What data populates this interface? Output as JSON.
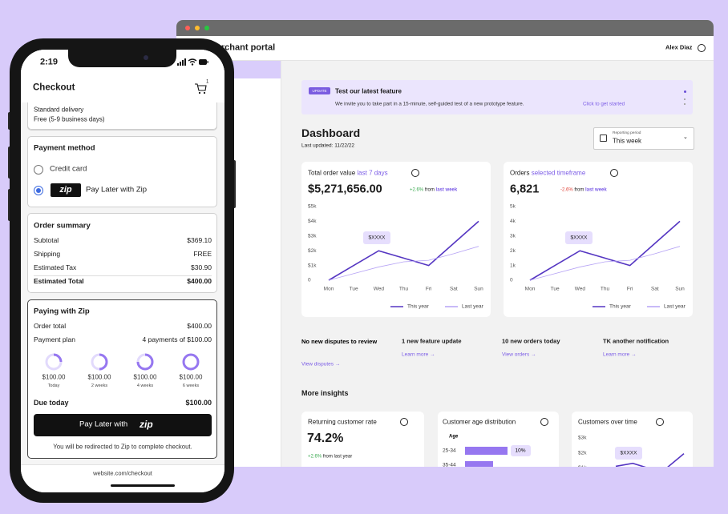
{
  "phone": {
    "status_time": "2:19",
    "header": {
      "title": "Checkout",
      "cart_count": "1"
    },
    "delivery": {
      "name": "Standard delivery",
      "detail": "Free (5-9 business days)"
    },
    "payment_method": {
      "title": "Payment method",
      "options": [
        {
          "label": "Credit card"
        },
        {
          "logo": "zip",
          "label": "Pay Later with Zip"
        }
      ]
    },
    "order_summary": {
      "title": "Order summary",
      "rows": [
        [
          "Subtotal",
          "$369.10"
        ],
        [
          "Shipping",
          "FREE"
        ],
        [
          "Estimated Tax",
          "$30.90"
        ],
        [
          "Estimated Total",
          "$400.00"
        ]
      ]
    },
    "zip": {
      "title": "Paying with Zip",
      "rows": [
        [
          "Order total",
          "$400.00"
        ],
        [
          "Payment plan",
          "4 payments of $100.00"
        ]
      ],
      "installments": [
        {
          "amount": "$100.00",
          "when": "Today"
        },
        {
          "amount": "$100.00",
          "when": "2 weeks"
        },
        {
          "amount": "$100.00",
          "when": "4 weeks"
        },
        {
          "amount": "$100.00",
          "when": "6 weeks"
        }
      ],
      "due": [
        "Due today",
        "$100.00"
      ],
      "button": {
        "label": "Pay Later with",
        "logo": "zip"
      },
      "note": "You will be redirected to Zip to complete checkout."
    },
    "url": "website.com/checkout"
  },
  "portal": {
    "brand": "merchant portal",
    "user": "Alex Diaz",
    "banner": {
      "badge": "UPDATE",
      "title": "Test our latest feature",
      "text": "We invite you to take part in a 15-minute, self-guided test of a new prototype feature.",
      "link": "Click to get started"
    },
    "dashboard": {
      "title": "Dashboard",
      "updated": "Last updated: 11/22/22",
      "period": {
        "label": "Reporting period",
        "value": "This week"
      }
    },
    "kpis": [
      {
        "title": "Total order value",
        "filter": "last 7 days",
        "value": "$5,271,656.00",
        "change": "+2.6%",
        "from": "from",
        "period": "last week"
      },
      {
        "title": "Orders",
        "filter": "selected timeframe",
        "value": "6,821",
        "change": "-2.6%",
        "from": "from",
        "period": "last week"
      }
    ],
    "notifications": [
      {
        "title": "No new disputes to review",
        "link": "View disputes →"
      },
      {
        "title": "1 new feature update",
        "link": "Learn more →"
      },
      {
        "title": "10 new orders today",
        "link": "View orders →"
      },
      {
        "title": "TK another notification",
        "link": "Learn more →"
      }
    ],
    "insights": {
      "title": "More insights",
      "returning": {
        "title": "Returning customer rate",
        "value": "74.2%",
        "change": "+2.6%",
        "note": "from last year"
      },
      "age_title": "Customer age distribution",
      "over_time_title": "Customers over time"
    }
  },
  "chart_data": [
    {
      "type": "line",
      "categories": [
        "Mon",
        "Tue",
        "Wed",
        "Thu",
        "Fri",
        "Sat",
        "Sun"
      ],
      "series": [
        {
          "name": "This year",
          "color": "#5536c2",
          "values": [
            0,
            1000,
            2000,
            1500,
            1000,
            2500,
            4000
          ]
        },
        {
          "name": "Last year",
          "color": "#b6a3f5",
          "values": [
            0,
            450,
            900,
            1250,
            1350,
            1800,
            2300
          ]
        }
      ],
      "ylim": [
        0,
        5000
      ],
      "yticks": [
        0,
        {
          "value": 1000,
          "label": "$1k"
        },
        {
          "value": 2000,
          "label": "$2k"
        },
        {
          "value": 3000,
          "label": "$3k"
        },
        {
          "value": 4000,
          "label": "$4k"
        },
        {
          "value": 5000,
          "label": "$5k"
        }
      ],
      "grid": false,
      "annotation": "$XXXX"
    },
    {
      "type": "line",
      "categories": [
        "Mon",
        "Tue",
        "Wed",
        "Thu",
        "Fri",
        "Sat",
        "Sun"
      ],
      "series": [
        {
          "name": "This year",
          "color": "#5536c2",
          "values": [
            0,
            1000,
            2000,
            1500,
            1000,
            2500,
            4000
          ]
        },
        {
          "name": "Last year",
          "color": "#b6a3f5",
          "values": [
            0,
            450,
            900,
            1250,
            1350,
            1800,
            2300
          ]
        }
      ],
      "ylim": [
        0,
        5000
      ],
      "yticks": [
        0,
        {
          "value": 1000,
          "label": "1k"
        },
        {
          "value": 2000,
          "label": "2k"
        },
        {
          "value": 3000,
          "label": "3k"
        },
        {
          "value": 4000,
          "label": "4k"
        },
        {
          "value": 5000,
          "label": "5k"
        }
      ],
      "grid": false,
      "annotation": "$XXXX"
    },
    {
      "type": "hbar",
      "axis_label": "Age",
      "categories": [
        "25-34",
        "35-44"
      ],
      "values": [
        10,
        6.6
      ],
      "value_labels": [
        "10%",
        null
      ],
      "color": "#9677f0"
    },
    {
      "type": "line",
      "categories": [
        null,
        null,
        null,
        null,
        null
      ],
      "values": [
        1100,
        1300,
        950,
        1000,
        1950
      ],
      "color": "#5536c2",
      "ylim": [
        0,
        3000
      ],
      "yticks": [
        {
          "value": 1000,
          "label": "$1k"
        },
        {
          "value": 2000,
          "label": "$2k"
        },
        {
          "value": 3000,
          "label": "$3k"
        }
      ],
      "grid": false,
      "annotation": "$XXXX"
    }
  ]
}
